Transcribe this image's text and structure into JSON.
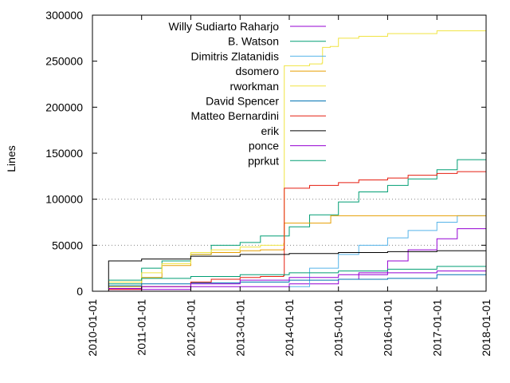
{
  "chart_data": {
    "type": "line",
    "title": "",
    "xlabel": "",
    "ylabel": "Lines",
    "x_ticks": [
      "2010-01-01",
      "2011-01-01",
      "2012-01-01",
      "2013-01-01",
      "2014-01-01",
      "2015-01-01",
      "2016-01-01",
      "2017-01-01",
      "2018-01-01"
    ],
    "y_ticks": [
      "0",
      "50000",
      "100000",
      "150000",
      "200000",
      "250000",
      "300000"
    ],
    "xlim": [
      "2010-01-01",
      "2018-01-01"
    ],
    "ylim": [
      0,
      300000
    ],
    "grid": "horizontal dotted at 50000 and 100000",
    "legend_position": "top-left inside",
    "series": [
      {
        "name": "Willy Sudiarto Raharjo",
        "color": "#9400d3",
        "x": [
          "2010-05-01",
          "2012-01-01",
          "2014-01-01",
          "2015-01-01",
          "2015-06-01",
          "2016-01-01",
          "2016-06-01",
          "2017-01-01",
          "2017-06-01",
          "2018-01-01"
        ],
        "y": [
          2000,
          5000,
          8000,
          13000,
          20000,
          33000,
          45000,
          57000,
          68000,
          82000
        ]
      },
      {
        "name": "B. Watson",
        "color": "#009e73",
        "x": [
          "2010-05-01",
          "2011-01-01",
          "2011-06-01",
          "2012-01-01",
          "2012-06-01",
          "2013-01-01",
          "2013-06-01",
          "2014-01-01",
          "2014-06-01",
          "2015-01-01",
          "2015-06-01",
          "2016-01-01",
          "2016-06-01",
          "2017-01-01",
          "2017-06-01",
          "2018-01-01"
        ],
        "y": [
          8000,
          25000,
          33000,
          40000,
          50000,
          53000,
          60000,
          70000,
          83000,
          97000,
          108000,
          115000,
          122000,
          132000,
          143000,
          155000
        ]
      },
      {
        "name": "Dimitris Zlatanidis",
        "color": "#56b4e9",
        "x": [
          "2013-12-20",
          "2014-01-01",
          "2014-06-01",
          "2015-01-01",
          "2015-06-01",
          "2016-01-01",
          "2016-06-01",
          "2017-01-01",
          "2017-06-01",
          "2018-01-01"
        ],
        "y": [
          0,
          5000,
          25000,
          40000,
          50000,
          58000,
          66000,
          75000,
          82000,
          90000
        ]
      },
      {
        "name": "dsomero",
        "color": "#e69f00",
        "x": [
          "2010-05-01",
          "2011-01-01",
          "2011-06-01",
          "2012-01-01",
          "2012-06-01",
          "2013-01-01",
          "2013-06-01",
          "2013-11-20",
          "2013-11-25",
          "2014-06-01",
          "2014-11-01",
          "2014-11-05",
          "2015-06-01",
          "2016-01-01",
          "2017-01-01",
          "2018-01-01"
        ],
        "y": [
          5000,
          15000,
          28000,
          40000,
          42000,
          44000,
          45000,
          46000,
          74000,
          74000,
          74000,
          82000,
          82000,
          82000,
          82000,
          82000
        ]
      },
      {
        "name": "rworkman",
        "color": "#f0e442",
        "x": [
          "2010-05-01",
          "2011-01-01",
          "2011-06-01",
          "2012-01-01",
          "2012-06-01",
          "2013-01-01",
          "2013-06-01",
          "2013-11-20",
          "2013-11-25",
          "2014-06-01",
          "2014-09-01",
          "2014-09-05",
          "2014-11-01",
          "2015-01-01",
          "2015-06-01",
          "2016-01-01",
          "2017-01-01",
          "2018-01-01"
        ],
        "y": [
          10000,
          20000,
          30000,
          42000,
          45000,
          48000,
          50000,
          52000,
          245000,
          247000,
          248000,
          265000,
          266000,
          275000,
          277000,
          280000,
          283000,
          285000
        ]
      },
      {
        "name": "David Spencer",
        "color": "#0072b2",
        "x": [
          "2010-05-01",
          "2011-01-01",
          "2012-01-01",
          "2013-01-01",
          "2014-01-01",
          "2015-01-01",
          "2016-01-01",
          "2017-01-01",
          "2018-01-01"
        ],
        "y": [
          6000,
          8000,
          9000,
          10000,
          12000,
          13000,
          14000,
          18000,
          22000
        ]
      },
      {
        "name": "Matteo Bernardini",
        "color": "#e51e10",
        "x": [
          "2010-05-01",
          "2011-01-01",
          "2012-01-01",
          "2012-06-01",
          "2013-01-01",
          "2013-06-01",
          "2013-11-20",
          "2013-11-25",
          "2014-06-01",
          "2015-01-01",
          "2015-06-01",
          "2016-01-01",
          "2016-06-01",
          "2017-01-01",
          "2017-06-01",
          "2018-01-01"
        ],
        "y": [
          2000,
          5000,
          10000,
          13000,
          15000,
          16000,
          17000,
          112000,
          115000,
          118000,
          121000,
          123000,
          126000,
          128000,
          130000,
          131000
        ]
      },
      {
        "name": "erik",
        "color": "#000000",
        "x": [
          "2010-04-01",
          "2010-05-01",
          "2011-01-01",
          "2012-01-01",
          "2013-01-01",
          "2014-01-01",
          "2015-01-01",
          "2016-01-01",
          "2017-01-01",
          "2018-01-01"
        ],
        "y": [
          0,
          33000,
          35000,
          38000,
          40000,
          41000,
          42000,
          43000,
          44000,
          45000
        ]
      },
      {
        "name": "ponce",
        "color": "#9400d3",
        "x": [
          "2010-05-01",
          "2011-01-01",
          "2012-01-01",
          "2013-01-01",
          "2014-01-01",
          "2015-01-01",
          "2016-01-01",
          "2017-01-01",
          "2018-01-01"
        ],
        "y": [
          3000,
          5000,
          8000,
          12000,
          15000,
          18000,
          20000,
          22000,
          24000
        ]
      },
      {
        "name": "pprkut",
        "color": "#009e73",
        "x": [
          "2010-05-01",
          "2011-01-01",
          "2012-01-01",
          "2013-01-01",
          "2014-01-01",
          "2015-01-01",
          "2016-01-01",
          "2017-01-01",
          "2018-01-01"
        ],
        "y": [
          12000,
          14000,
          16000,
          18000,
          20000,
          22000,
          24000,
          27000,
          30000
        ]
      }
    ]
  }
}
